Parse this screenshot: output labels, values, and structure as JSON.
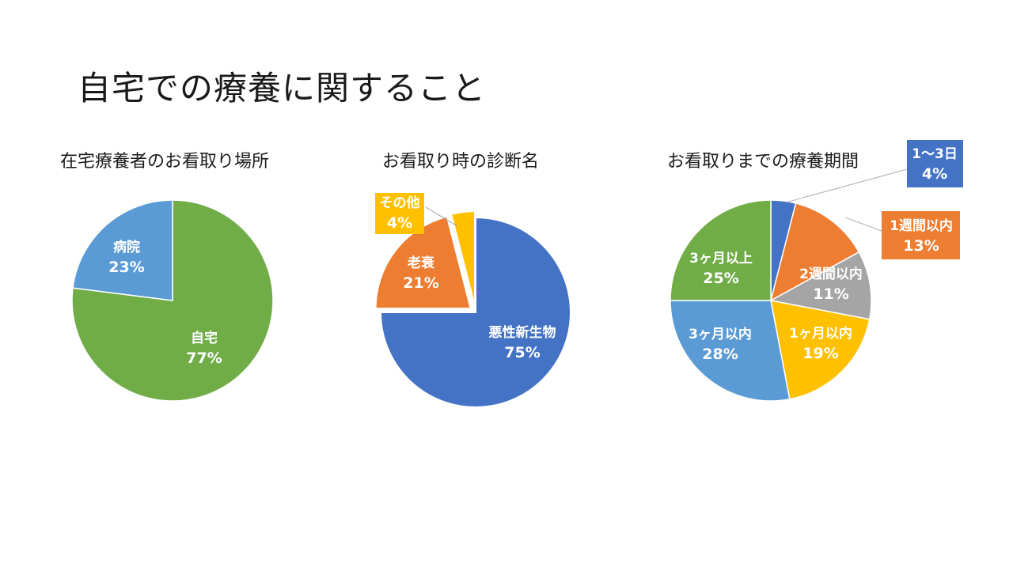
{
  "slide": {
    "title": "自宅での療養に関すること"
  },
  "chart_data": [
    {
      "type": "pie",
      "title": "在宅療養者のお看取り場所",
      "slices": [
        {
          "label": "自宅",
          "value": 77,
          "display": "77%",
          "color": "#70AD47",
          "text_color": "#ffffff"
        },
        {
          "label": "病院",
          "value": 23,
          "display": "23%",
          "color": "#5B9BD5",
          "text_color": "#ffffff"
        }
      ]
    },
    {
      "type": "pie",
      "title": "お看取り時の診断名",
      "exploded": true,
      "slices": [
        {
          "label": "悪性新生物",
          "value": 75,
          "display": "75%",
          "color": "#4472C4",
          "text_color": "#ffffff"
        },
        {
          "label": "老衰",
          "value": 21,
          "display": "21%",
          "color": "#ED7D31",
          "text_color": "#ffffff"
        },
        {
          "label": "その他",
          "value": 4,
          "display": "4%",
          "color": "#FFC000",
          "text_color": "#ffffff"
        }
      ]
    },
    {
      "type": "pie",
      "title": "お看取りまでの療養期間",
      "slices": [
        {
          "label": "1～3日",
          "value": 4,
          "display": "4%",
          "color": "#4472C4",
          "text_color": "#ffffff"
        },
        {
          "label": "1週間以内",
          "value": 13,
          "display": "13%",
          "color": "#ED7D31",
          "text_color": "#ffffff"
        },
        {
          "label": "2週間以内",
          "value": 11,
          "display": "11%",
          "color": "#A5A5A5",
          "text_color": "#ffffff"
        },
        {
          "label": "1ヶ月以内",
          "value": 19,
          "display": "19%",
          "color": "#FFC000",
          "text_color": "#ffffff"
        },
        {
          "label": "3ヶ月以内",
          "value": 28,
          "display": "28%",
          "color": "#5B9BD5",
          "text_color": "#ffffff"
        },
        {
          "label": "3ヶ月以上",
          "value": 25,
          "display": "25%",
          "color": "#70AD47",
          "text_color": "#ffffff"
        }
      ]
    }
  ]
}
